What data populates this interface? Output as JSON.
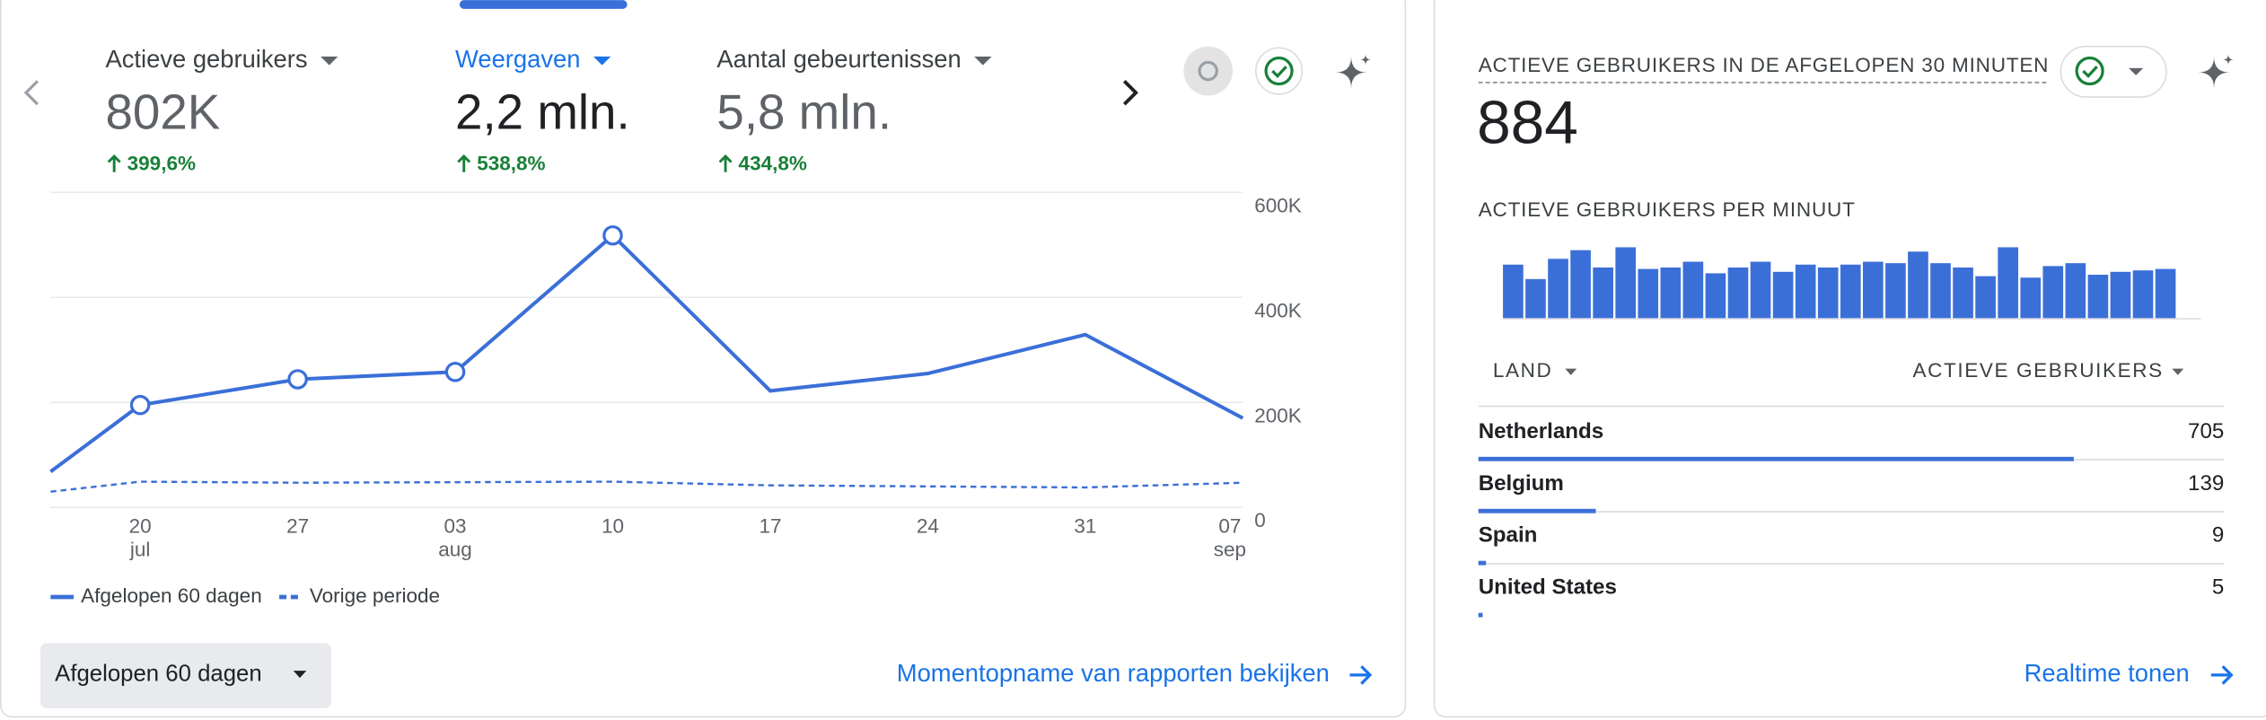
{
  "metrics": [
    {
      "label": "Actieve gebruikers",
      "value": "802K",
      "change": "399,6%"
    },
    {
      "label": "Weergaven",
      "value": "2,2 mln.",
      "change": "538,8%"
    },
    {
      "label": "Aantal gebeurtenissen",
      "value": "5,8 mln.",
      "change": "434,8%"
    }
  ],
  "selected_metric": 1,
  "date_range_button": "Afgelopen 60 dagen",
  "snapshot_link": "Momentopname van rapporten bekijken",
  "realtime": {
    "title": "ACTIEVE GEBRUIKERS IN DE AFGELOPEN 30 MINUTEN",
    "count": 884,
    "table": {
      "headers": [
        "LAND",
        "ACTIEVE GEBRUIKERS"
      ],
      "rows": [
        {
          "country": "Netherlands",
          "users": 705
        },
        {
          "country": "Belgium",
          "users": 139
        },
        {
          "country": "Spain",
          "users": 9
        },
        {
          "country": "United States",
          "users": 5
        }
      ]
    },
    "link": "Realtime tonen"
  },
  "chart_data": [
    {
      "type": "line",
      "categories": [
        null,
        [
          "20",
          "jul"
        ],
        [
          "27"
        ],
        [
          "03",
          "aug"
        ],
        [
          "10"
        ],
        [
          "17"
        ],
        [
          "24"
        ],
        [
          "31"
        ],
        [
          "07",
          "sep"
        ]
      ],
      "series": [
        {
          "name": "Afgelopen 60 dagen",
          "color": "#3b6fd8",
          "dashed": false,
          "values": [
            68000,
            195000,
            244000,
            258000,
            518000,
            222000,
            255000,
            329000,
            170000
          ]
        },
        {
          "name": "Vorige periode",
          "color": "#3b6fd8",
          "dashed": true,
          "values": [
            30000,
            49000,
            47000,
            48000,
            49000,
            42000,
            40000,
            38000,
            47000
          ]
        }
      ],
      "ylim": [
        0,
        600000
      ],
      "yticks": [
        0,
        {
          "value": 200000,
          "label": "200K"
        },
        {
          "value": 400000,
          "label": "400K"
        },
        {
          "value": 600000,
          "label": "600K"
        }
      ],
      "grid": true
    },
    {
      "type": "bar",
      "title": "ACTIEVE GEBRUIKERS PER MINUUT",
      "color": "#3b6fd8",
      "values": [
        37,
        27,
        41,
        47,
        35,
        49,
        34,
        35,
        39,
        31,
        35,
        39,
        32,
        37,
        35,
        37,
        39,
        38,
        46,
        38,
        35,
        29,
        49,
        28,
        36,
        38,
        30,
        32,
        33,
        34
      ]
    }
  ]
}
